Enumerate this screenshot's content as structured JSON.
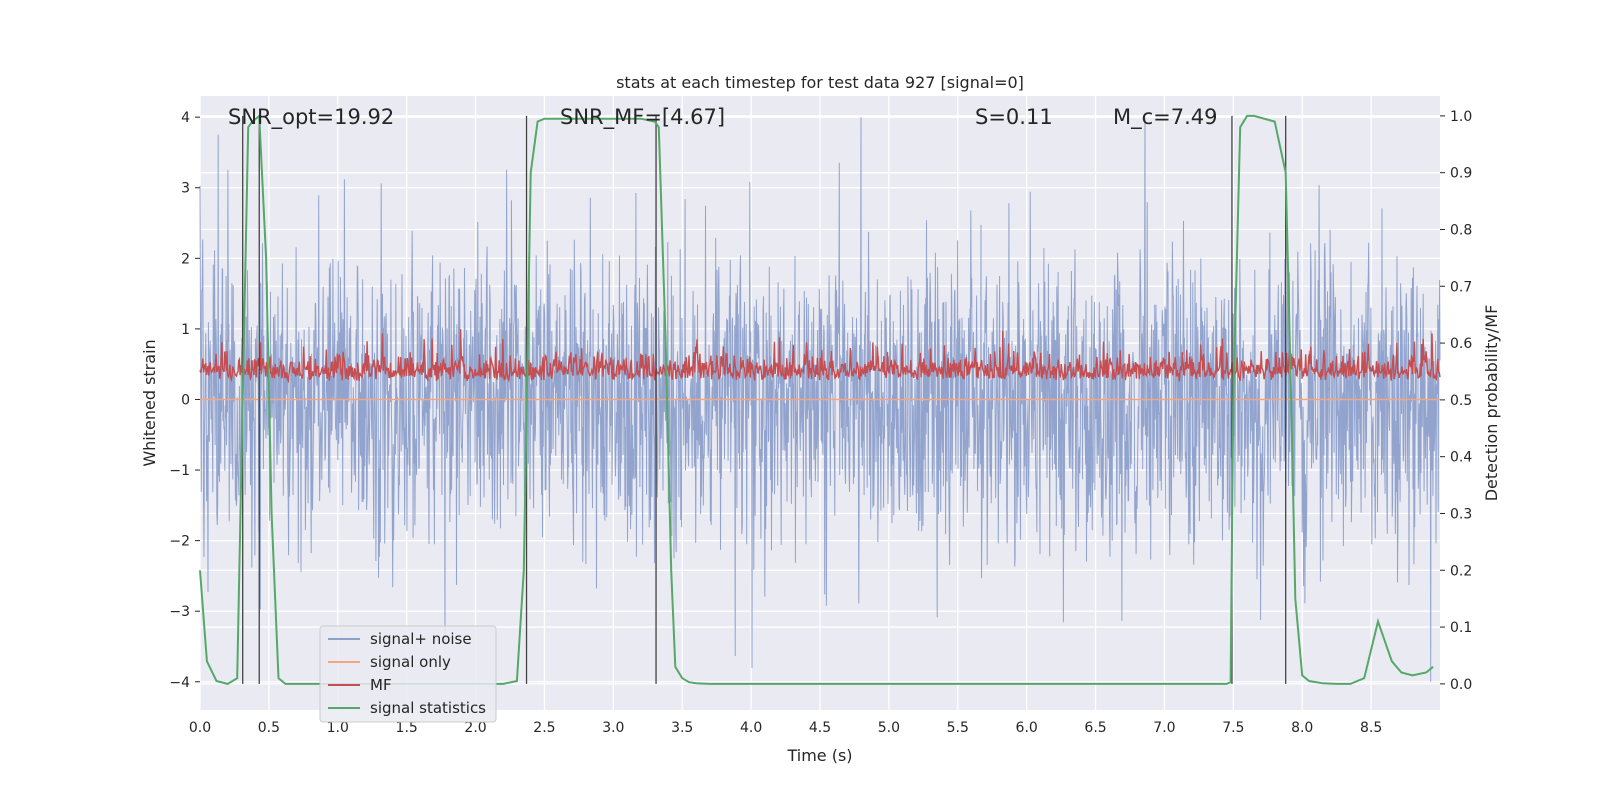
{
  "chart_data": {
    "type": "line",
    "title": "stats at each timestep for test data 927 [signal=0]",
    "xlabel": "Time (s)",
    "ylabel": "Whitened strain",
    "y2label": "Detection probability/MF",
    "xlim": [
      0,
      9.0
    ],
    "ylim": [
      -4.4,
      4.3
    ],
    "y2lim": [
      -0.046,
      1.035
    ],
    "x_ticks": [
      "0.0",
      "0.5",
      "1.0",
      "1.5",
      "2.0",
      "2.5",
      "3.0",
      "3.5",
      "4.0",
      "4.5",
      "5.0",
      "5.5",
      "6.0",
      "6.5",
      "7.0",
      "7.5",
      "8.0",
      "8.5"
    ],
    "y_ticks": [
      "4",
      "3",
      "2",
      "1",
      "0",
      "−1",
      "−2",
      "−3",
      "−4"
    ],
    "y2_ticks": [
      "1.0",
      "0.9",
      "0.8",
      "0.7",
      "0.6",
      "0.5",
      "0.4",
      "0.3",
      "0.2",
      "0.1",
      "0.0"
    ],
    "grid": true,
    "legend_position": "lower-left",
    "annotations": [
      {
        "text": "SNR_opt=19.92",
        "x": 0.2,
        "y": 4.0
      },
      {
        "text": "SNR_MF=[4.67]",
        "x": 2.6,
        "y": 4.0
      },
      {
        "text": "S=0.11",
        "x": 5.6,
        "y": 4.0
      },
      {
        "text": "M_c=7.49",
        "x": 6.6,
        "y": 4.0
      }
    ],
    "vertical_lines_x": [
      0.31,
      0.43,
      2.37,
      3.31,
      7.49,
      7.88
    ],
    "series": [
      {
        "name": "signal+ noise",
        "color": "#8da0cb",
        "kind": "noise",
        "amplitude_range": [
          -4.0,
          4.0
        ]
      },
      {
        "name": "signal only",
        "color": "#f4a582",
        "kind": "flat",
        "value": 0
      },
      {
        "name": "MF",
        "color": "#c44e52",
        "kind": "noise",
        "amplitude_range": [
          0.0,
          1.0
        ]
      },
      {
        "name": "signal statistics",
        "color": "#55a868",
        "kind": "line",
        "axis": "right",
        "x": [
          0.0,
          0.05,
          0.12,
          0.2,
          0.27,
          0.31,
          0.35,
          0.38,
          0.43,
          0.48,
          0.52,
          0.57,
          0.62,
          0.75,
          1.0,
          1.5,
          2.0,
          2.2,
          2.3,
          2.35,
          2.4,
          2.45,
          2.5,
          2.6,
          2.8,
          3.0,
          3.2,
          3.3,
          3.33,
          3.38,
          3.42,
          3.45,
          3.5,
          3.55,
          3.6,
          3.7,
          4.0,
          5.0,
          6.0,
          7.0,
          7.45,
          7.48,
          7.5,
          7.55,
          7.6,
          7.65,
          7.8,
          7.88,
          7.92,
          7.95,
          8.0,
          8.05,
          8.15,
          8.25,
          8.35,
          8.45,
          8.55,
          8.65,
          8.72,
          8.8,
          8.9,
          8.95
        ],
        "y": [
          0.2,
          0.04,
          0.005,
          0.0,
          0.01,
          0.5,
          0.98,
          0.99,
          1.0,
          0.75,
          0.3,
          0.01,
          0.0,
          0.0,
          0.0,
          0.0,
          0.0,
          0.0,
          0.005,
          0.2,
          0.9,
          0.99,
          0.995,
          0.995,
          0.995,
          0.995,
          0.995,
          0.99,
          0.98,
          0.6,
          0.2,
          0.03,
          0.01,
          0.003,
          0.001,
          0.0,
          0.0,
          0.0,
          0.0,
          0.0,
          0.0,
          0.003,
          0.5,
          0.98,
          1.0,
          1.0,
          0.99,
          0.9,
          0.5,
          0.15,
          0.015,
          0.005,
          0.001,
          0.0,
          0.0,
          0.01,
          0.11,
          0.04,
          0.02,
          0.015,
          0.02,
          0.03
        ]
      }
    ]
  }
}
